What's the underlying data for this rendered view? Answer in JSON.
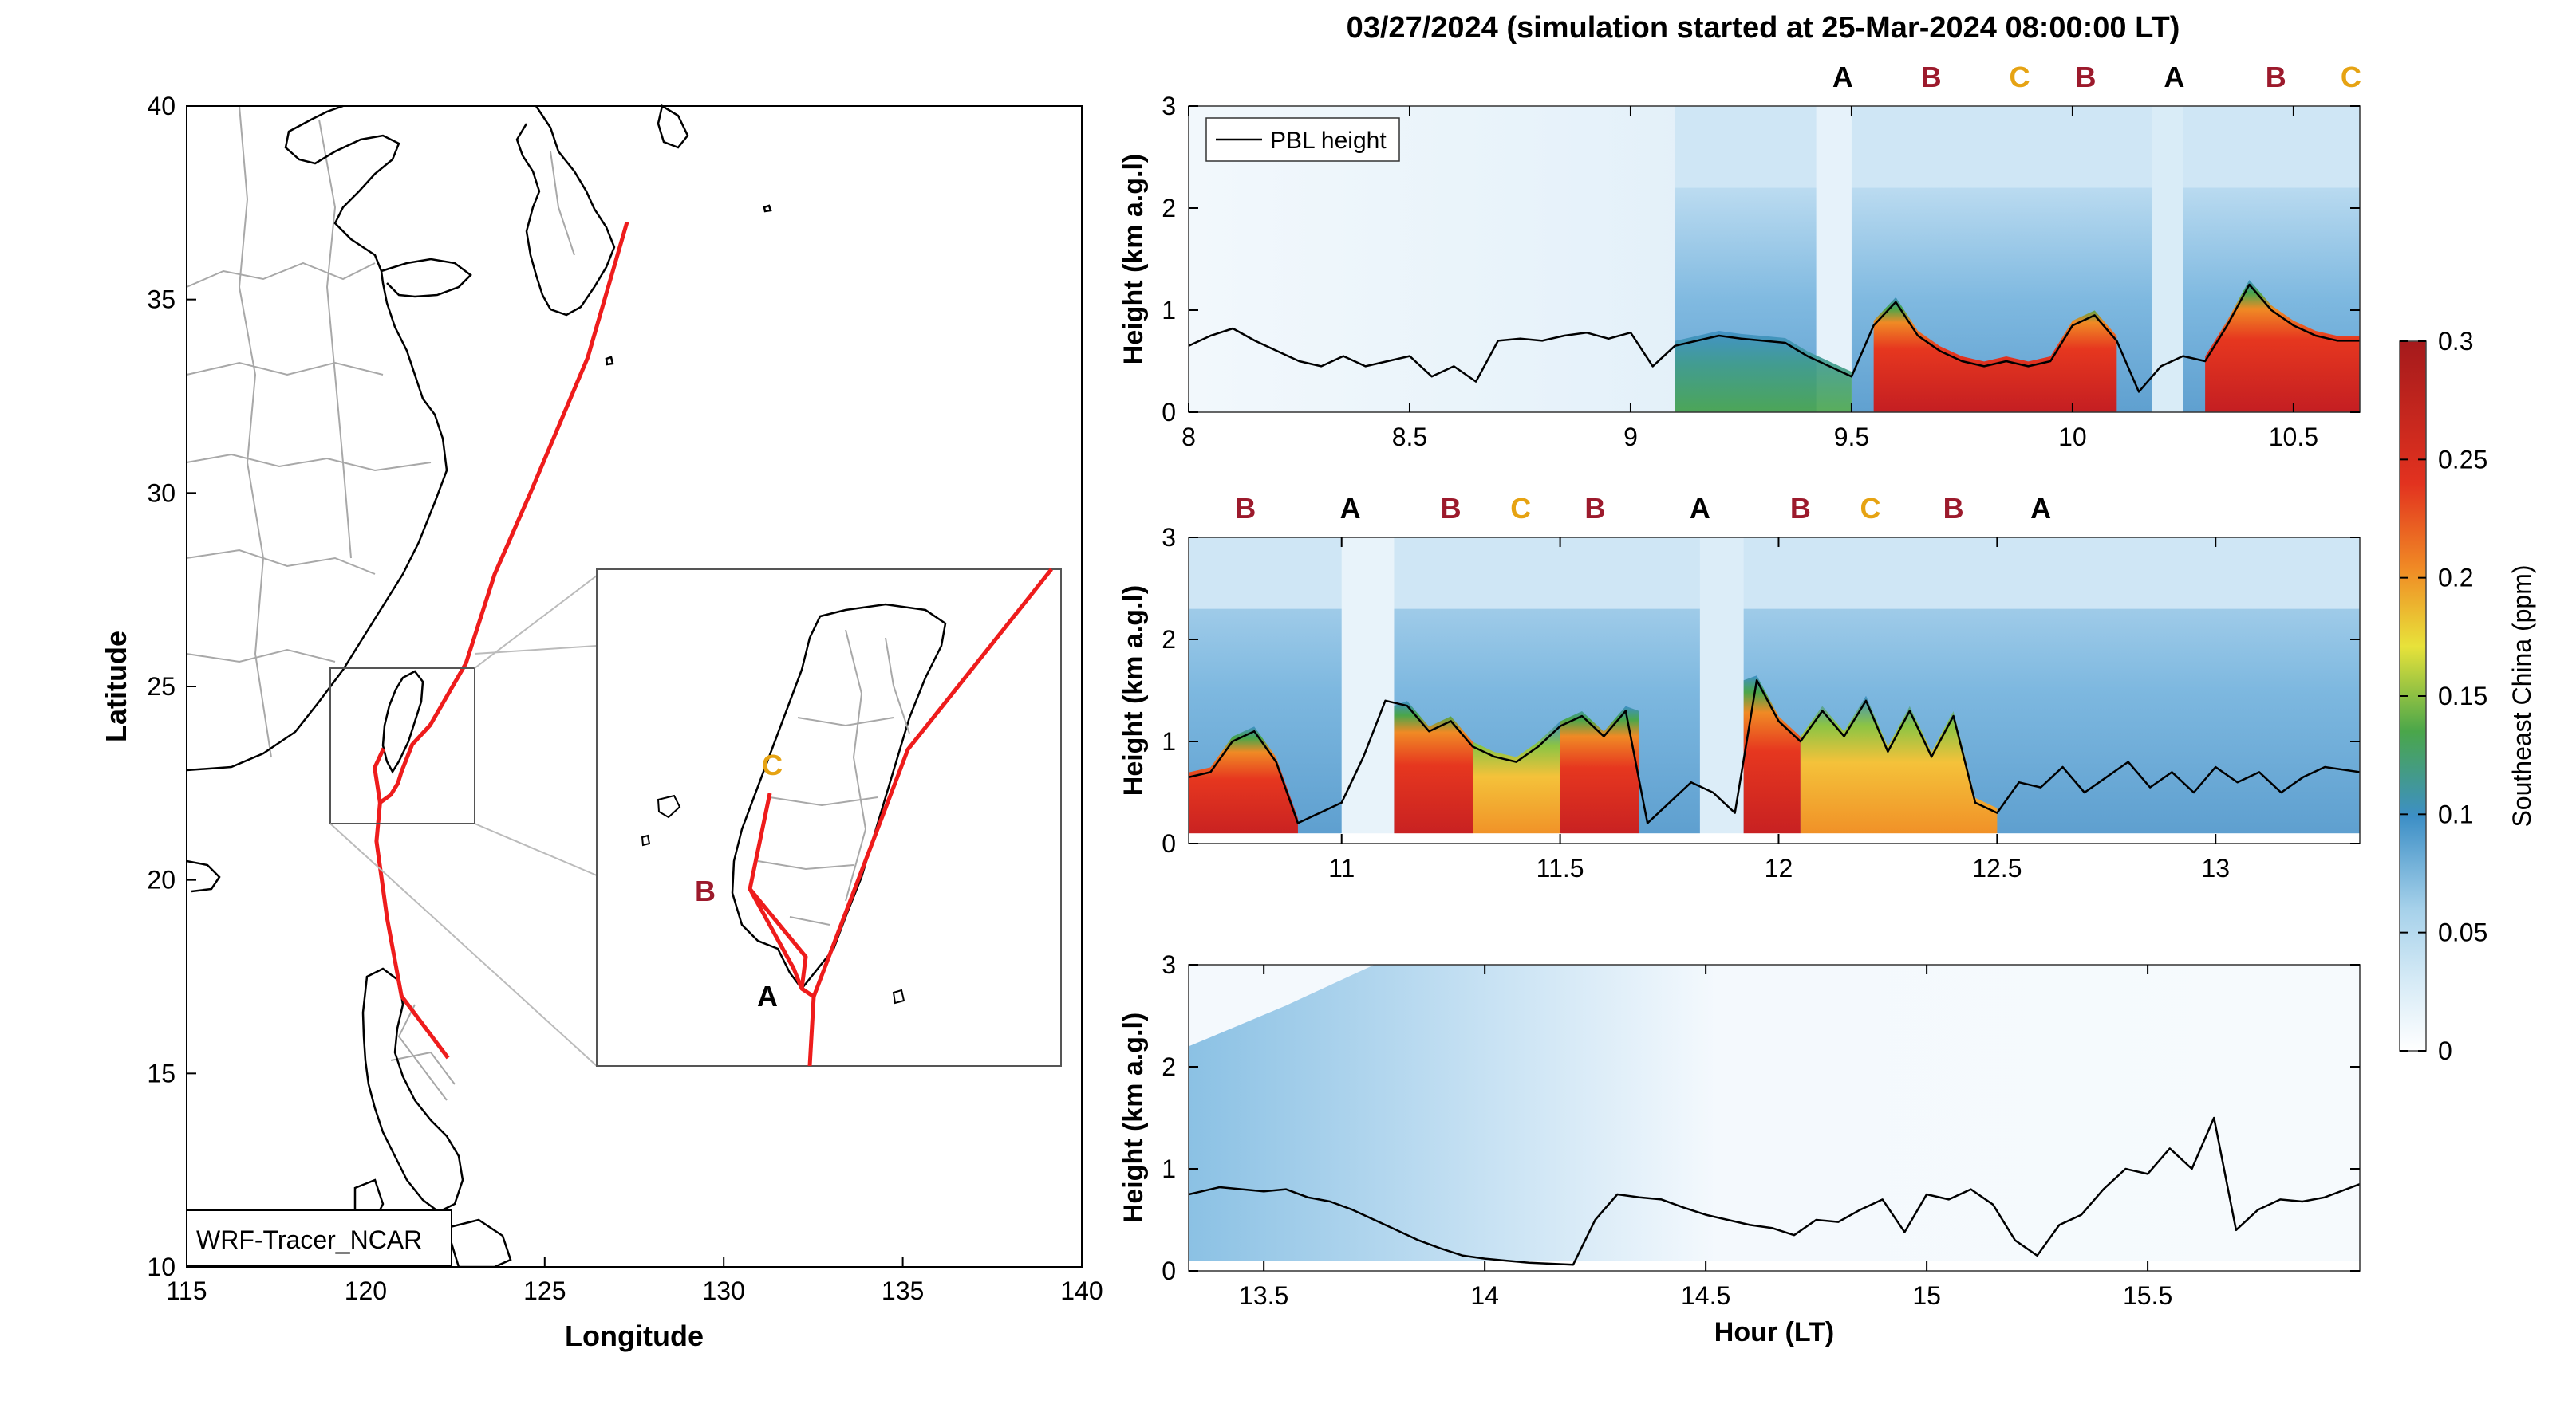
{
  "title": "03/27/2024 (simulation started at 25-Mar-2024 08:00:00 LT)",
  "colors": {
    "track": "#ee1c1c",
    "label_A": "#000000",
    "label_B": "#9c1a2c",
    "label_C": "#e6a313",
    "pbl_line": "#000000",
    "coast": "#000000",
    "admin_border": "#a8a8a8"
  },
  "chart_data": [
    {
      "type": "map",
      "title": "",
      "xlabel": "Longitude",
      "ylabel": "Latitude",
      "xlim": [
        115,
        140
      ],
      "ylim": [
        10,
        40
      ],
      "xticks": [
        115,
        120,
        125,
        130,
        135,
        140
      ],
      "yticks": [
        10,
        15,
        20,
        25,
        30,
        35,
        40
      ],
      "legend": "WRF-Tracer_NCAR",
      "legend_position": "bottom-left",
      "track": {
        "lon": [
          122.3,
          121.0,
          120.6,
          120.3,
          120.4,
          120.7,
          120.9,
          121.0,
          121.3,
          121.8,
          122.8,
          123.6,
          124.6,
          126.2,
          127.3
        ],
        "lat": [
          15.4,
          17.0,
          19.0,
          21.0,
          22.0,
          22.2,
          22.5,
          22.8,
          23.5,
          24.0,
          25.6,
          27.9,
          30.0,
          33.5,
          37.0
        ]
      },
      "inset": {
        "box_lon": [
          119.0,
          123.0
        ],
        "box_lat": [
          21.5,
          25.5
        ],
        "markers": [
          {
            "label": "A",
            "lon": 120.83,
            "lat": 22.42
          },
          {
            "label": "B",
            "lon": 120.2,
            "lat": 23.0
          },
          {
            "label": "C",
            "lon": 120.55,
            "lat": 23.74
          }
        ]
      }
    },
    {
      "type": "heatmap",
      "title": "",
      "xlabel": "",
      "ylabel": "Height (km a.g.l)",
      "xlim": [
        8,
        10.65
      ],
      "ylim": [
        0,
        3
      ],
      "xticks": [
        8,
        8.5,
        9,
        9.5,
        10,
        10.5
      ],
      "yticks": [
        0,
        1,
        2,
        3
      ],
      "legend": "PBL height",
      "legend_position": "top-left",
      "site_labels": [
        {
          "label": "A",
          "x": 9.48
        },
        {
          "label": "B",
          "x": 9.68
        },
        {
          "label": "C",
          "x": 9.88
        },
        {
          "label": "B",
          "x": 10.03
        },
        {
          "label": "A",
          "x": 10.23
        },
        {
          "label": "B",
          "x": 10.46
        },
        {
          "label": "C",
          "x": 10.63
        }
      ],
      "pbl_height": {
        "x": [
          8.0,
          8.05,
          8.1,
          8.15,
          8.2,
          8.25,
          8.3,
          8.35,
          8.4,
          8.45,
          8.5,
          8.55,
          8.6,
          8.65,
          8.7,
          8.75,
          8.8,
          8.85,
          8.9,
          8.95,
          9.0,
          9.05,
          9.1,
          9.15,
          9.2,
          9.25,
          9.3,
          9.35,
          9.4,
          9.45,
          9.5,
          9.55,
          9.6,
          9.65,
          9.7,
          9.75,
          9.8,
          9.85,
          9.9,
          9.95,
          10.0,
          10.05,
          10.1,
          10.15,
          10.2,
          10.25,
          10.3,
          10.35,
          10.4,
          10.45,
          10.5,
          10.55,
          10.6,
          10.65
        ],
        "y": [
          0.65,
          0.75,
          0.82,
          0.7,
          0.6,
          0.5,
          0.45,
          0.55,
          0.45,
          0.5,
          0.55,
          0.35,
          0.45,
          0.3,
          0.7,
          0.72,
          0.7,
          0.75,
          0.78,
          0.72,
          0.78,
          0.45,
          0.65,
          0.7,
          0.75,
          0.72,
          0.7,
          0.68,
          0.55,
          0.45,
          0.35,
          0.85,
          1.08,
          0.75,
          0.6,
          0.5,
          0.45,
          0.5,
          0.45,
          0.5,
          0.85,
          0.95,
          0.7,
          0.2,
          0.45,
          0.55,
          0.5,
          0.85,
          1.25,
          1.0,
          0.85,
          0.75,
          0.7,
          0.7
        ]
      },
      "concentration_note_unused": ""
    },
    {
      "type": "heatmap",
      "title": "",
      "xlabel": "",
      "ylabel": "Height (km a.g.l)",
      "xlim": [
        10.65,
        13.33
      ],
      "ylim": [
        0,
        3
      ],
      "xticks": [
        11,
        11.5,
        12,
        12.5,
        13
      ],
      "yticks": [
        0,
        1,
        2,
        3
      ],
      "site_labels": [
        {
          "label": "B",
          "x": 10.78
        },
        {
          "label": "A",
          "x": 11.02
        },
        {
          "label": "B",
          "x": 11.25
        },
        {
          "label": "C",
          "x": 11.41
        },
        {
          "label": "B",
          "x": 11.58
        },
        {
          "label": "A",
          "x": 11.82
        },
        {
          "label": "B",
          "x": 12.05
        },
        {
          "label": "C",
          "x": 12.21
        },
        {
          "label": "B",
          "x": 12.4
        },
        {
          "label": "A",
          "x": 12.6
        }
      ],
      "pbl_height": {
        "x": [
          10.65,
          10.7,
          10.75,
          10.8,
          10.85,
          10.9,
          10.95,
          11.0,
          11.05,
          11.1,
          11.15,
          11.2,
          11.25,
          11.3,
          11.35,
          11.4,
          11.45,
          11.5,
          11.55,
          11.6,
          11.65,
          11.7,
          11.75,
          11.8,
          11.85,
          11.9,
          11.95,
          12.0,
          12.05,
          12.1,
          12.15,
          12.2,
          12.25,
          12.3,
          12.35,
          12.4,
          12.45,
          12.5,
          12.55,
          12.6,
          12.65,
          12.7,
          12.75,
          12.8,
          12.85,
          12.9,
          12.95,
          13.0,
          13.05,
          13.1,
          13.15,
          13.2,
          13.25,
          13.33
        ],
        "y": [
          0.65,
          0.7,
          1.0,
          1.1,
          0.8,
          0.2,
          0.3,
          0.4,
          0.85,
          1.4,
          1.35,
          1.1,
          1.2,
          0.95,
          0.85,
          0.8,
          0.95,
          1.15,
          1.25,
          1.05,
          1.3,
          0.2,
          0.4,
          0.6,
          0.5,
          0.3,
          1.6,
          1.2,
          1.0,
          1.3,
          1.05,
          1.4,
          0.9,
          1.3,
          0.85,
          1.25,
          0.4,
          0.3,
          0.6,
          0.55,
          0.75,
          0.5,
          0.65,
          0.8,
          0.55,
          0.7,
          0.5,
          0.75,
          0.6,
          0.7,
          0.5,
          0.65,
          0.75,
          0.7
        ]
      }
    },
    {
      "type": "heatmap",
      "title": "",
      "xlabel": "Hour (LT)",
      "ylabel": "Height (km a.g.l)",
      "xlim": [
        13.33,
        15.98
      ],
      "ylim": [
        0,
        3
      ],
      "xticks": [
        13.5,
        14,
        14.5,
        15,
        15.5
      ],
      "yticks": [
        0,
        1,
        2,
        3
      ],
      "pbl_height": {
        "x": [
          13.33,
          13.4,
          13.45,
          13.5,
          13.55,
          13.6,
          13.65,
          13.7,
          13.75,
          13.8,
          13.85,
          13.9,
          13.95,
          14.0,
          14.05,
          14.1,
          14.15,
          14.2,
          14.25,
          14.3,
          14.35,
          14.4,
          14.45,
          14.5,
          14.55,
          14.6,
          14.65,
          14.7,
          14.75,
          14.8,
          14.85,
          14.9,
          14.95,
          15.0,
          15.05,
          15.1,
          15.15,
          15.2,
          15.25,
          15.3,
          15.35,
          15.4,
          15.45,
          15.5,
          15.55,
          15.6,
          15.65,
          15.7,
          15.75,
          15.8,
          15.85,
          15.9,
          15.98
        ],
        "y": [
          0.75,
          0.82,
          0.8,
          0.78,
          0.8,
          0.72,
          0.68,
          0.6,
          0.5,
          0.4,
          0.3,
          0.22,
          0.15,
          0.12,
          0.1,
          0.08,
          0.07,
          0.06,
          0.5,
          0.75,
          0.72,
          0.7,
          0.62,
          0.55,
          0.5,
          0.45,
          0.42,
          0.35,
          0.5,
          0.48,
          0.6,
          0.7,
          0.38,
          0.75,
          0.7,
          0.8,
          0.65,
          0.3,
          0.15,
          0.45,
          0.55,
          0.8,
          1.0,
          0.95,
          1.2,
          1.0,
          1.5,
          0.4,
          0.6,
          0.7,
          0.68,
          0.72,
          0.85
        ]
      }
    },
    {
      "type": "colorbar",
      "label": "Southeast China (ppm)",
      "range": [
        0,
        0.3
      ],
      "ticks": [
        0,
        0.05,
        0.1,
        0.15,
        0.2,
        0.25,
        0.3
      ],
      "colors": [
        "#ffffff",
        "#a6d1ea",
        "#3d8fc6",
        "#4aa64a",
        "#e8e23a",
        "#f08a25",
        "#e2321f",
        "#a51a1c"
      ]
    }
  ]
}
